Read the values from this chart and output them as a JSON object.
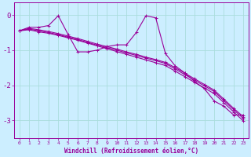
{
  "title": "",
  "xlabel": "Windchill (Refroidissement éolien,°C)",
  "ylabel": "",
  "bg_color": "#cceeff",
  "line_color": "#990099",
  "grid_color": "#aadddd",
  "x_min": -0.5,
  "x_max": 23.5,
  "y_min": -3.5,
  "y_max": 0.35,
  "yticks": [
    0,
    -1,
    -2,
    -3
  ],
  "xticks": [
    0,
    1,
    2,
    3,
    4,
    5,
    6,
    7,
    8,
    9,
    10,
    11,
    12,
    13,
    14,
    15,
    16,
    17,
    18,
    19,
    20,
    21,
    22,
    23
  ],
  "series_A": [
    -0.45,
    -0.35,
    -0.35,
    -0.3,
    -0.02,
    -0.55,
    -1.05,
    -1.05,
    -1.0,
    -0.9,
    -0.85,
    -0.85,
    -0.5,
    -0.02,
    -0.08,
    -1.1,
    -1.45,
    -1.65,
    -1.9,
    -2.1,
    -2.45,
    -2.6,
    -2.85,
    -2.85
  ],
  "series_B": [
    -0.45,
    -0.42,
    -0.48,
    -0.52,
    -0.58,
    -0.65,
    -0.72,
    -0.8,
    -0.88,
    -0.96,
    -1.04,
    -1.12,
    -1.2,
    -1.28,
    -1.36,
    -1.44,
    -1.6,
    -1.76,
    -1.92,
    -2.08,
    -2.24,
    -2.5,
    -2.76,
    -3.02
  ],
  "series_C": [
    -0.45,
    -0.4,
    -0.45,
    -0.5,
    -0.56,
    -0.63,
    -0.7,
    -0.78,
    -0.86,
    -0.93,
    -1.0,
    -1.08,
    -1.15,
    -1.23,
    -1.3,
    -1.38,
    -1.54,
    -1.7,
    -1.86,
    -2.02,
    -2.18,
    -2.44,
    -2.7,
    -2.95
  ],
  "series_D": [
    -0.45,
    -0.38,
    -0.42,
    -0.47,
    -0.53,
    -0.6,
    -0.67,
    -0.75,
    -0.83,
    -0.9,
    -0.97,
    -1.05,
    -1.12,
    -1.2,
    -1.27,
    -1.35,
    -1.5,
    -1.66,
    -1.82,
    -1.98,
    -2.14,
    -2.4,
    -2.66,
    -2.9
  ],
  "marker": "+",
  "markersize": 3,
  "linewidth": 0.8
}
